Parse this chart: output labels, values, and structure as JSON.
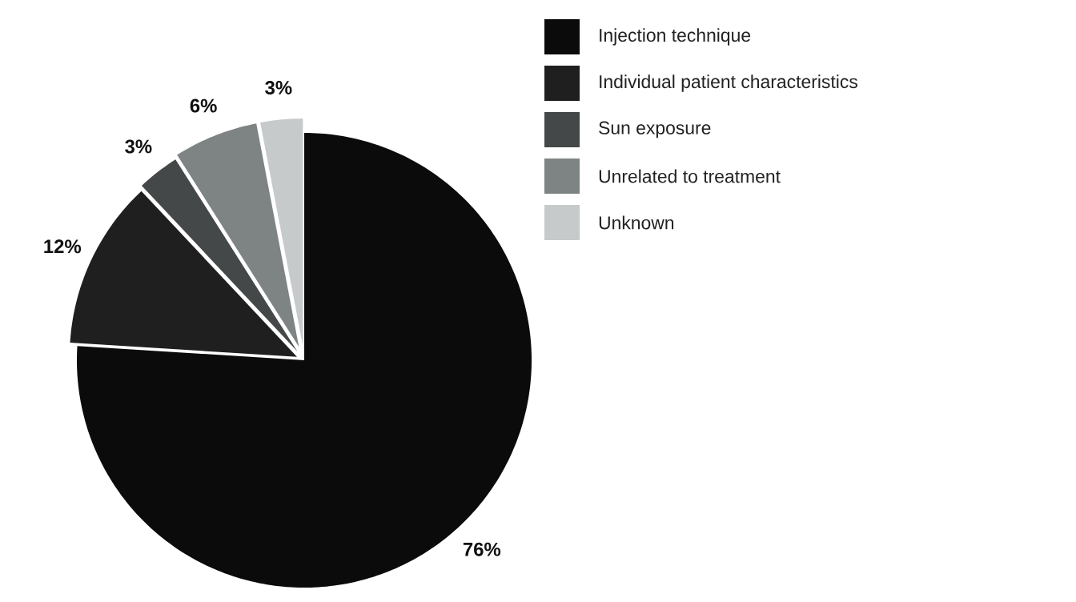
{
  "chart_data": {
    "type": "pie",
    "categories": [
      "Injection technique",
      "Individual patient characteristics",
      "Sun exposure",
      "Unrelated to treatment",
      "Unknown"
    ],
    "values": [
      76,
      12,
      3,
      6,
      3
    ],
    "value_labels": [
      "76%",
      "12%",
      "3%",
      "6%",
      "3%"
    ],
    "colors": [
      "#0b0b0b",
      "#1f1f1f",
      "#454848",
      "#7e8483",
      "#c7cacb"
    ],
    "legend": "right"
  }
}
